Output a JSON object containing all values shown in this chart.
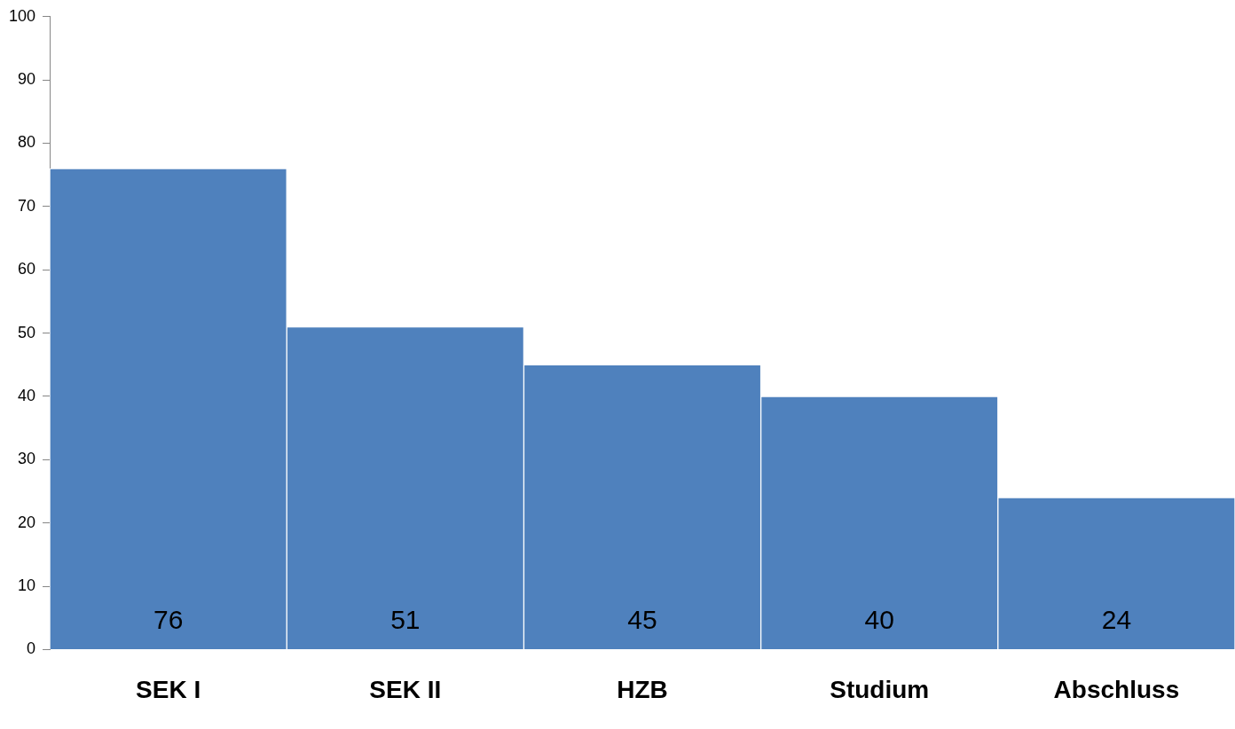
{
  "chart_data": {
    "type": "bar",
    "categories": [
      "SEK I",
      "SEK II",
      "HZB",
      "Studium",
      "Abschluss"
    ],
    "values": [
      76,
      51,
      45,
      40,
      24
    ],
    "color": "#4f81bd",
    "ylim": [
      0,
      100
    ],
    "yticks": [
      0,
      10,
      20,
      30,
      40,
      50,
      60,
      70,
      80,
      90,
      100
    ],
    "data_labels": true
  }
}
